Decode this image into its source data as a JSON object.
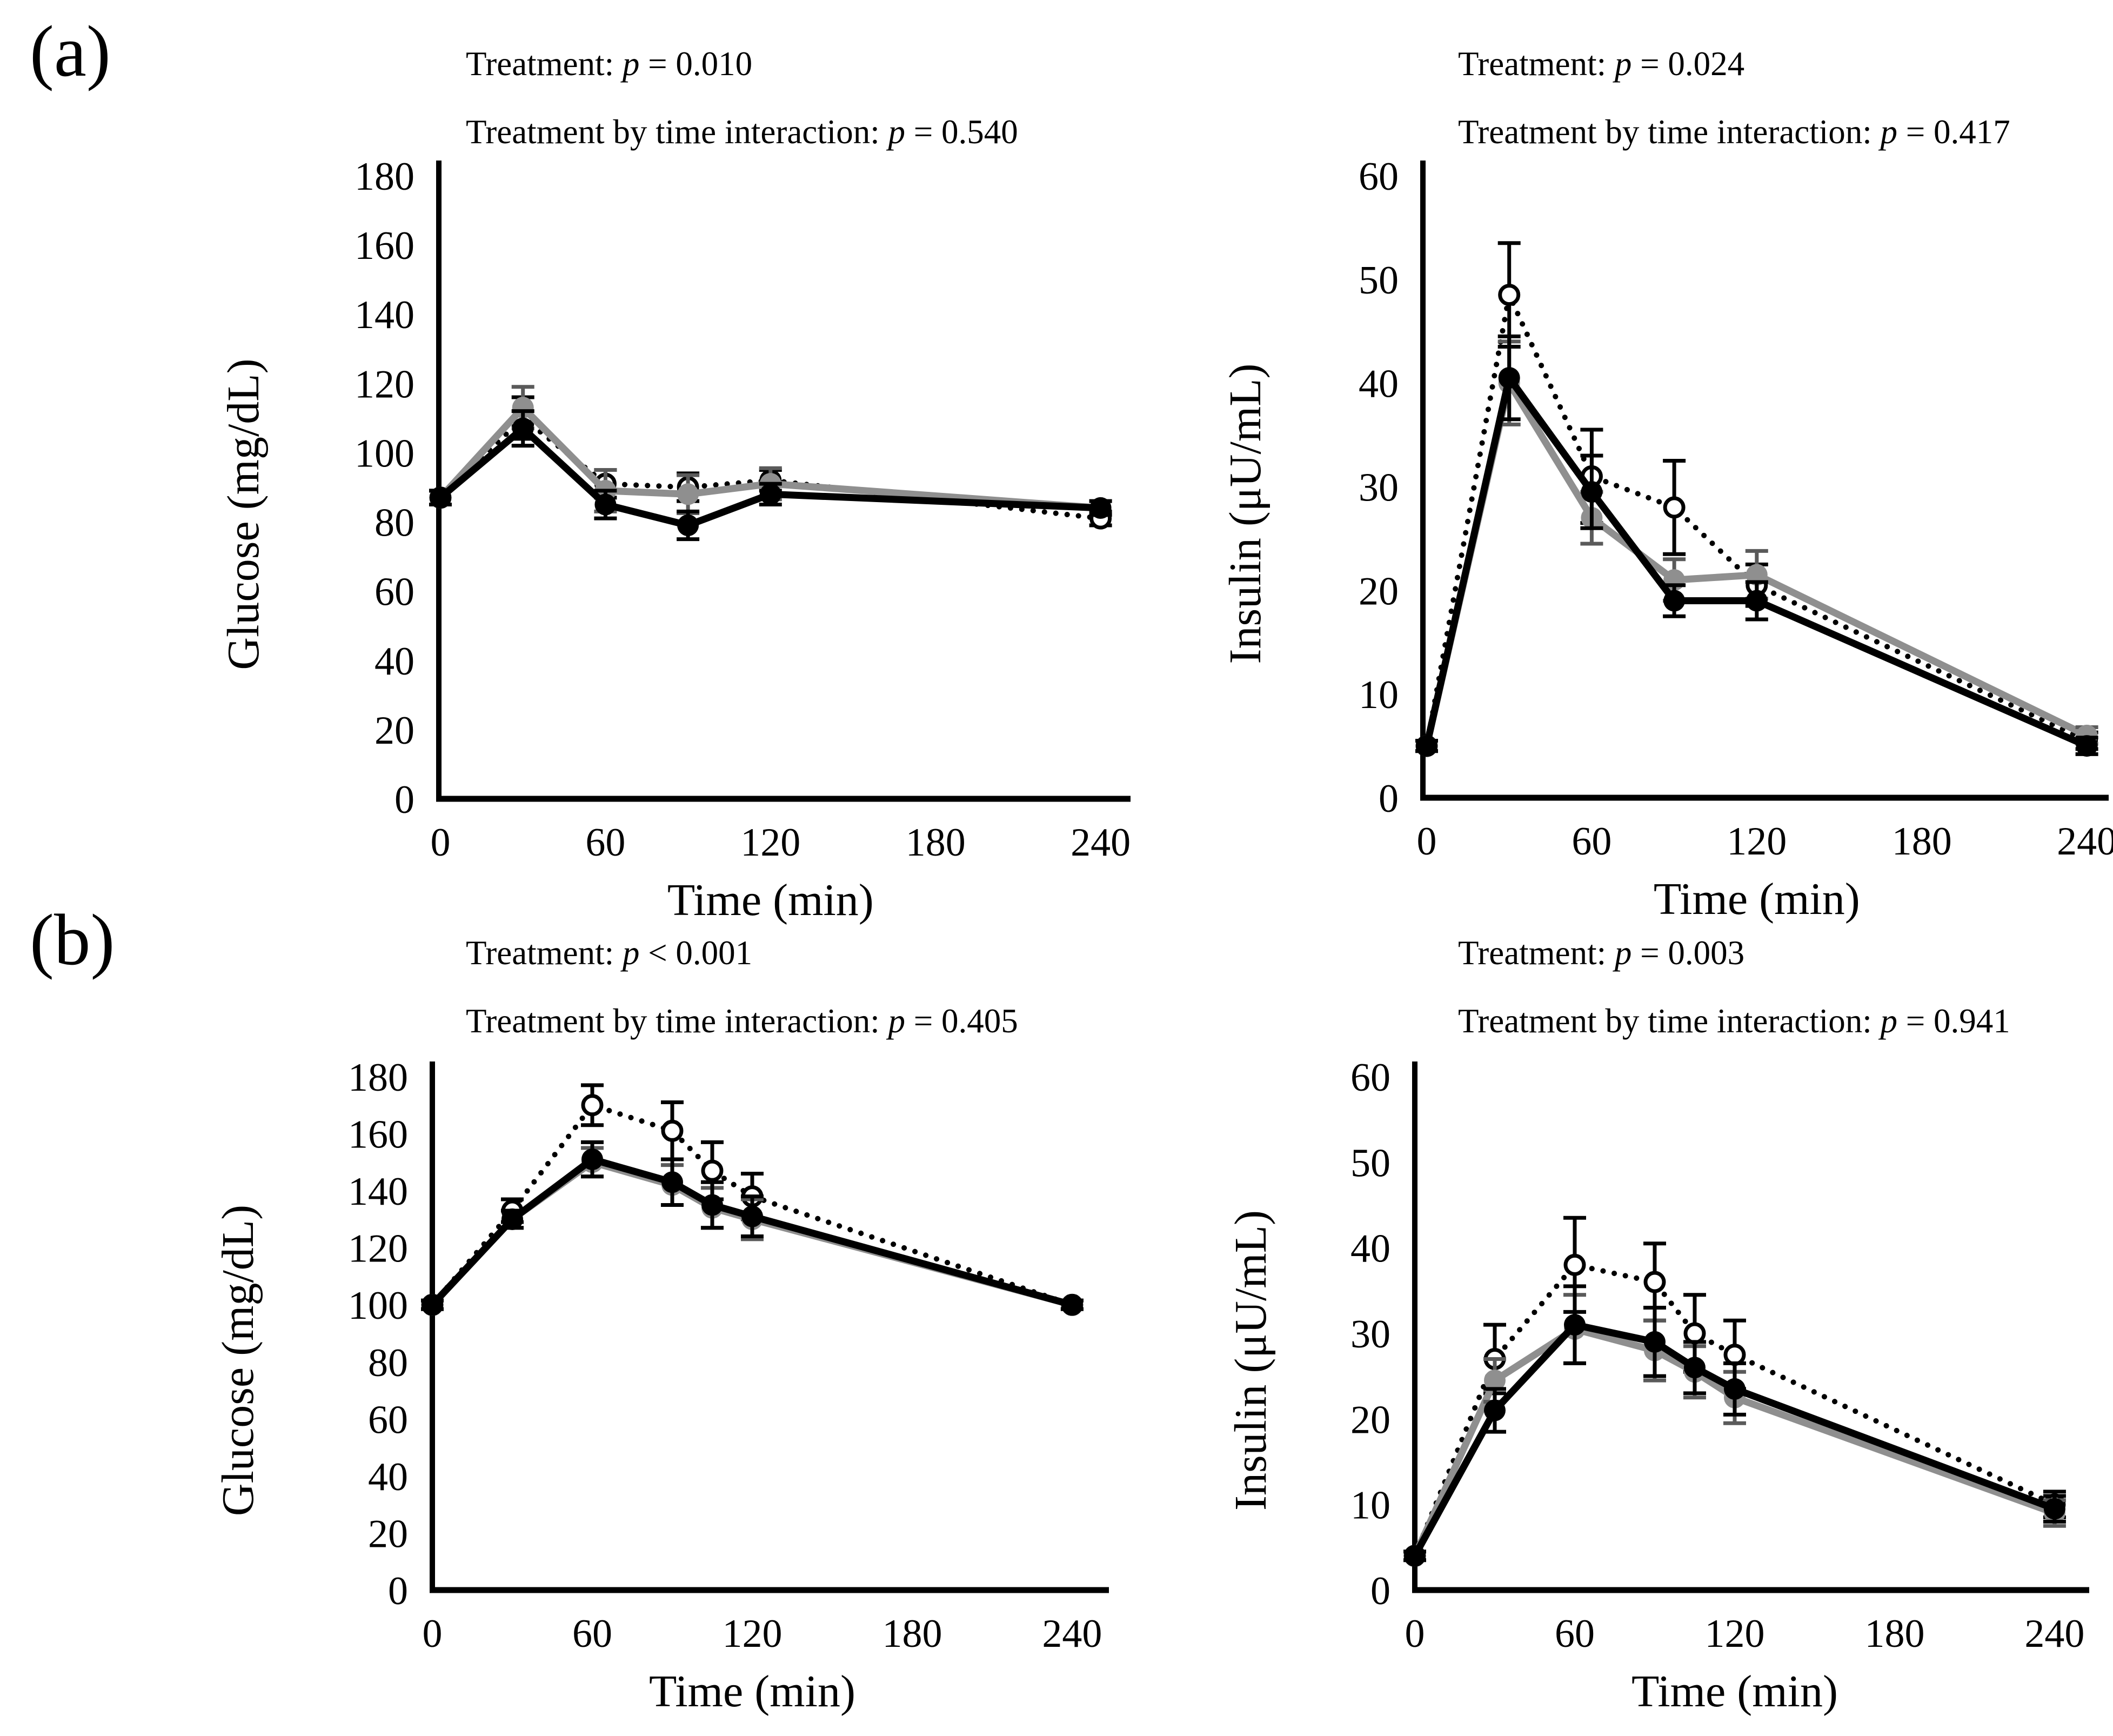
{
  "figure": {
    "panel_labels": {
      "a": "(a)",
      "b": "(b)"
    },
    "background": "#ffffff",
    "text_color": "#000000",
    "gray_series_color": "#8f8f8f",
    "gray_error_color": "#5a5a5a"
  },
  "chart_data": [
    {
      "id": "a_glucose",
      "panel": "a",
      "type": "line",
      "title_lines": [
        {
          "pre": "Treatment: ",
          "p": "p",
          "post": " = 0.010"
        },
        {
          "pre": "Treatment by time interaction: ",
          "p": "p",
          "post": " = 0.540"
        }
      ],
      "xlabel": "Time (min)",
      "ylabel": "Glucose (mg/dL)",
      "xticks": [
        0,
        60,
        120,
        180,
        240
      ],
      "xlim": [
        0,
        250
      ],
      "ylim": [
        0,
        180
      ],
      "ytick_step": 20,
      "grid": false,
      "legend": "none",
      "x": [
        0,
        30,
        60,
        90,
        120,
        240
      ],
      "series": [
        {
          "name": "dotted-open-circle",
          "marker": "open-circle",
          "line": "dotted",
          "color": "#000000",
          "error_color": "#000000",
          "values": [
            87,
            110,
            91,
            90,
            92,
            81
          ],
          "errors": [
            2,
            6,
            4,
            4,
            3,
            2
          ]
        },
        {
          "name": "gray-filled-circle",
          "marker": "filled-circle",
          "line": "solid",
          "color": "#8f8f8f",
          "error_color": "#5a5a5a",
          "values": [
            87,
            113,
            89,
            88,
            91,
            84
          ],
          "errors": [
            2,
            6,
            6,
            5.5,
            4.5,
            2
          ]
        },
        {
          "name": "black-filled-circle",
          "marker": "filled-circle",
          "line": "solid",
          "color": "#000000",
          "error_color": "#000000",
          "values": [
            87,
            107,
            85,
            79,
            88,
            84
          ],
          "errors": [
            2,
            5,
            4,
            4,
            3,
            2
          ]
        }
      ]
    },
    {
      "id": "a_insulin",
      "panel": "a",
      "type": "line",
      "title_lines": [
        {
          "pre": "Treatment: ",
          "p": "p",
          "post": " = 0.024"
        },
        {
          "pre": "Treatment by time interaction: ",
          "p": "p",
          "post": " = 0.417"
        }
      ],
      "xlabel": "Time (min)",
      "ylabel": "Insulin (μU/mL)",
      "xticks": [
        0,
        60,
        120,
        180,
        240
      ],
      "xlim": [
        0,
        250
      ],
      "ylim": [
        0,
        60
      ],
      "ytick_step": 10,
      "grid": false,
      "legend": "none",
      "x": [
        0,
        30,
        60,
        90,
        120,
        240
      ],
      "series": [
        {
          "name": "dotted-open-circle",
          "marker": "open-circle",
          "line": "dotted",
          "color": "#000000",
          "error_color": "#000000",
          "values": [
            5,
            48.5,
            31,
            28,
            20.5,
            5.5
          ],
          "errors": [
            0.5,
            5,
            4.5,
            4.5,
            2,
            0.8
          ]
        },
        {
          "name": "gray-filled-circle",
          "marker": "filled-circle",
          "line": "solid",
          "color": "#8f8f8f",
          "error_color": "#5a5a5a",
          "values": [
            5,
            40,
            27,
            21,
            21.5,
            6
          ],
          "errors": [
            0.5,
            4,
            2.5,
            2,
            2.3,
            0.8
          ]
        },
        {
          "name": "black-filled-circle",
          "marker": "filled-circle",
          "line": "solid",
          "color": "#000000",
          "error_color": "#000000",
          "values": [
            5,
            40.5,
            29.5,
            19,
            19,
            5
          ],
          "errors": [
            0.5,
            4,
            3.5,
            1.5,
            1.8,
            0.8
          ]
        }
      ]
    },
    {
      "id": "b_glucose",
      "panel": "b",
      "type": "line",
      "title_lines": [
        {
          "pre": "Treatment: ",
          "p": "p",
          "post": " < 0.001"
        },
        {
          "pre": "Treatment by time interaction: ",
          "p": "p",
          "post": " = 0.405"
        }
      ],
      "xlabel": "Time (min)",
      "ylabel": "Glucose (mg/dL)",
      "xticks": [
        0,
        60,
        120,
        180,
        240
      ],
      "xlim": [
        0,
        250
      ],
      "ylim": [
        0,
        180
      ],
      "ytick_step": 20,
      "grid": false,
      "legend": "none",
      "x": [
        0,
        30,
        60,
        90,
        105,
        120,
        240
      ],
      "series": [
        {
          "name": "dotted-open-circle",
          "marker": "open-circle",
          "line": "dotted",
          "color": "#000000",
          "error_color": "#000000",
          "values": [
            100,
            133,
            170,
            161,
            147,
            138,
            100
          ],
          "errors": [
            1.5,
            4,
            7,
            10,
            10,
            8,
            1.5
          ]
        },
        {
          "name": "gray-filled-circle",
          "marker": "filled-circle",
          "line": "solid",
          "color": "#8f8f8f",
          "error_color": "#5a5a5a",
          "values": [
            100,
            130,
            150,
            142,
            134,
            130,
            100
          ],
          "errors": [
            1.5,
            3,
            5,
            7,
            7,
            7,
            1.5
          ]
        },
        {
          "name": "black-filled-circle",
          "marker": "filled-circle",
          "line": "solid",
          "color": "#000000",
          "error_color": "#000000",
          "values": [
            100,
            130,
            151,
            143,
            135,
            131,
            100
          ],
          "errors": [
            1.5,
            3,
            6,
            8,
            8,
            7,
            1.5
          ]
        }
      ]
    },
    {
      "id": "b_insulin",
      "panel": "b",
      "type": "line",
      "title_lines": [
        {
          "pre": "Treatment: ",
          "p": "p",
          "post": " = 0.003"
        },
        {
          "pre": "Treatment by time interaction: ",
          "p": "p",
          "post": " = 0.941"
        }
      ],
      "xlabel": "Time (min)",
      "ylabel": "Insulin (μU/mL)",
      "xticks": [
        0,
        60,
        120,
        180,
        240
      ],
      "xlim": [
        0,
        250
      ],
      "ylim": [
        0,
        60
      ],
      "ytick_step": 10,
      "grid": false,
      "legend": "none",
      "x": [
        0,
        30,
        60,
        90,
        105,
        120,
        240
      ],
      "series": [
        {
          "name": "dotted-open-circle",
          "marker": "open-circle",
          "line": "dotted",
          "color": "#000000",
          "error_color": "#000000",
          "values": [
            4,
            27,
            38,
            36,
            30,
            27.5,
            10
          ],
          "errors": [
            0.5,
            4,
            5.5,
            4.5,
            4.5,
            4,
            1.5
          ]
        },
        {
          "name": "gray-filled-circle",
          "marker": "filled-circle",
          "line": "solid",
          "color": "#8f8f8f",
          "error_color": "#5a5a5a",
          "values": [
            4,
            24.5,
            30.5,
            28,
            25.5,
            22.5,
            9
          ],
          "errors": [
            0.5,
            2.5,
            4,
            3.5,
            3,
            3,
            1.5
          ]
        },
        {
          "name": "black-filled-circle",
          "marker": "filled-circle",
          "line": "solid",
          "color": "#000000",
          "error_color": "#000000",
          "values": [
            4,
            21,
            31,
            29,
            26,
            23.5,
            9.5
          ],
          "errors": [
            0.5,
            2.5,
            4.5,
            4,
            3,
            3,
            1.5
          ]
        }
      ]
    }
  ]
}
